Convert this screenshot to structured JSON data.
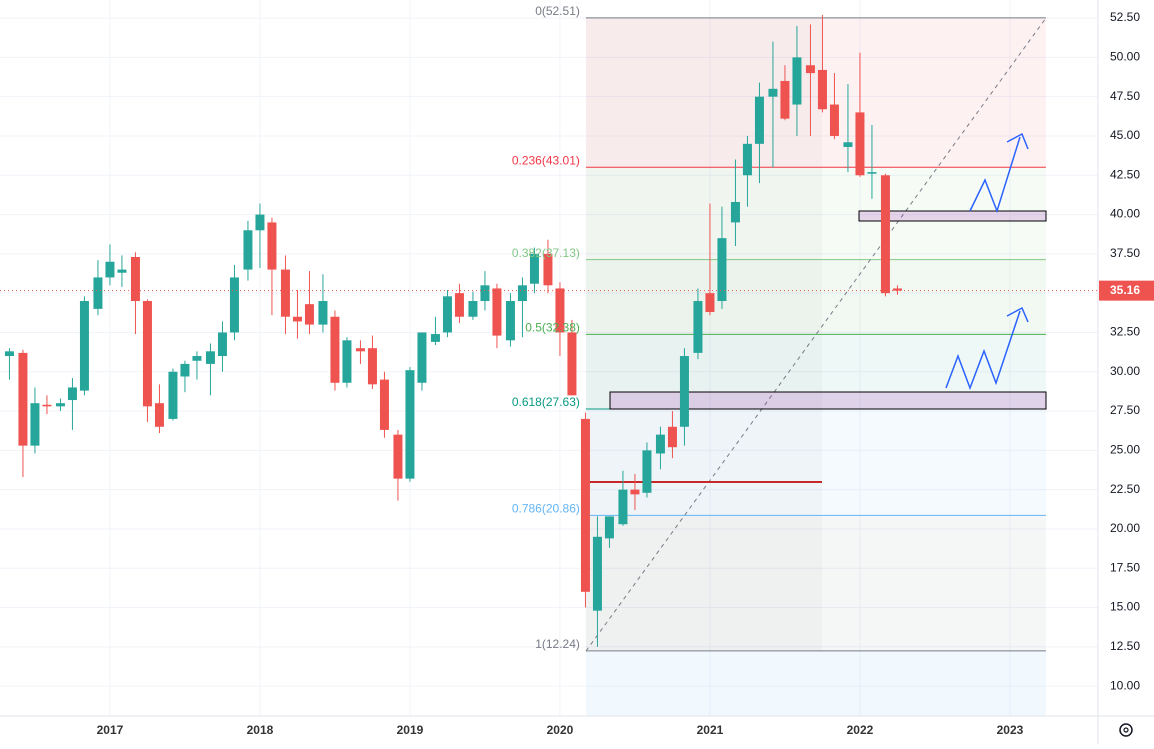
{
  "chart_data": {
    "type": "candlestick",
    "up_color": "#26a69a",
    "down_color": "#ef5350",
    "xlim": [
      2016.267,
      2023.587
    ],
    "xticks": [
      2017,
      2018,
      2019,
      2020,
      2021,
      2022,
      2023
    ],
    "ylim": [
      8.1,
      53.65
    ],
    "yticks": [
      {
        "value": 10,
        "label": "10.00"
      },
      {
        "value": 12.5,
        "label": "12.50"
      },
      {
        "value": 15,
        "label": "15.00"
      },
      {
        "value": 17.5,
        "label": "17.50"
      },
      {
        "value": 20,
        "label": "20.00"
      },
      {
        "value": 22.5,
        "label": "22.50"
      },
      {
        "value": 25,
        "label": "25.00"
      },
      {
        "value": 27.5,
        "label": "27.50"
      },
      {
        "value": 30,
        "label": "30.00"
      },
      {
        "value": 32.5,
        "label": "32.50"
      },
      {
        "value": 35,
        "label": "35.00"
      },
      {
        "value": 37.5,
        "label": "37.50"
      },
      {
        "value": 40,
        "label": "40.00"
      },
      {
        "value": 42.5,
        "label": "42.50"
      },
      {
        "value": 45,
        "label": "45.00"
      },
      {
        "value": 47.5,
        "label": "47.50"
      },
      {
        "value": 50,
        "label": "50.00"
      },
      {
        "value": 52.5,
        "label": "52.50"
      }
    ],
    "grid": true,
    "x": [
      2016.33,
      2016.42,
      2016.5,
      2016.58,
      2016.67,
      2016.75,
      2016.83,
      2016.92,
      2017.0,
      2017.08,
      2017.17,
      2017.25,
      2017.33,
      2017.42,
      2017.5,
      2017.58,
      2017.67,
      2017.75,
      2017.83,
      2017.92,
      2018.0,
      2018.08,
      2018.17,
      2018.25,
      2018.33,
      2018.42,
      2018.5,
      2018.58,
      2018.67,
      2018.75,
      2018.83,
      2018.92,
      2019.0,
      2019.08,
      2019.17,
      2019.25,
      2019.33,
      2019.42,
      2019.5,
      2019.58,
      2019.67,
      2019.75,
      2019.83,
      2019.92,
      2020.0,
      2020.08,
      2020.17,
      2020.25,
      2020.33,
      2020.42,
      2020.5,
      2020.58,
      2020.67,
      2020.75,
      2020.83,
      2020.92,
      2021.0,
      2021.08,
      2021.17,
      2021.25,
      2021.33,
      2021.42,
      2021.5,
      2021.58,
      2021.67,
      2021.75,
      2021.83,
      2021.92,
      2022.0,
      2022.08,
      2022.17,
      2022.25
    ],
    "open": [
      31.0,
      31.2,
      25.3,
      27.9,
      27.8,
      28.2,
      28.8,
      34.0,
      36.0,
      36.3,
      37.3,
      34.5,
      28.0,
      27.0,
      29.7,
      30.7,
      30.5,
      31.0,
      32.5,
      36.5,
      39.0,
      39.5,
      36.5,
      33.5,
      34.3,
      33.0,
      33.5,
      29.3,
      31.5,
      31.5,
      29.5,
      26.0,
      23.2,
      29.3,
      31.9,
      32.5,
      35.0,
      33.5,
      34.5,
      35.3,
      32.0,
      34.5,
      35.6,
      37.5,
      35.3,
      32.5,
      27.0,
      14.8,
      19.4,
      20.3,
      22.5,
      22.3,
      24.8,
      26.5,
      26.5,
      31.2,
      35.0,
      34.5,
      39.5,
      42.5,
      44.5,
      47.5,
      48.5,
      47.0,
      49.5,
      49.2,
      47.0,
      44.3,
      46.5,
      42.6,
      42.5,
      35.3
    ],
    "high": [
      31.5,
      31.4,
      29.0,
      28.5,
      28.3,
      29.6,
      34.8,
      37.1,
      38.1,
      37.4,
      37.6,
      34.6,
      29.2,
      30.2,
      30.7,
      31.3,
      31.8,
      33.2,
      36.8,
      39.6,
      40.7,
      39.8,
      37.4,
      35.2,
      36.4,
      36.2,
      33.9,
      32.2,
      32.0,
      32.3,
      30.0,
      26.3,
      30.3,
      32.5,
      33.5,
      35.2,
      35.6,
      35.1,
      36.4,
      35.6,
      35.0,
      36.0,
      37.9,
      38.4,
      35.7,
      33.3,
      27.4,
      20.8,
      20.8,
      23.7,
      23.5,
      25.5,
      26.5,
      27.5,
      31.5,
      35.3,
      40.7,
      40.5,
      43.5,
      45.0,
      48.4,
      51.0,
      49.5,
      52.0,
      52.1,
      52.7,
      49.0,
      48.3,
      50.3,
      45.7,
      42.6,
      35.5
    ],
    "low": [
      29.5,
      23.3,
      24.8,
      27.3,
      27.5,
      26.3,
      28.5,
      33.6,
      35.5,
      35.4,
      32.4,
      26.8,
      26.1,
      26.9,
      28.7,
      29.5,
      28.5,
      30.0,
      32.0,
      35.8,
      36.6,
      33.6,
      32.4,
      32.1,
      32.4,
      32.5,
      28.8,
      29.0,
      30.5,
      28.9,
      25.8,
      21.8,
      23.0,
      28.8,
      31.7,
      32.2,
      33.1,
      33.3,
      33.9,
      31.5,
      31.6,
      32.2,
      35.0,
      35.0,
      31.0,
      28.5,
      15.0,
      12.5,
      18.8,
      20.2,
      21.2,
      22.0,
      23.8,
      24.5,
      25.3,
      30.8,
      33.6,
      34.0,
      38.0,
      40.5,
      42.0,
      43.0,
      46.0,
      45.0,
      45.0,
      46.5,
      44.8,
      42.7,
      42.4,
      41.0,
      34.8,
      34.9
    ],
    "close": [
      31.3,
      25.3,
      28.0,
      27.8,
      28.0,
      29.0,
      34.5,
      36.0,
      37.0,
      36.5,
      34.5,
      27.8,
      26.5,
      30.0,
      30.5,
      31.0,
      31.3,
      32.5,
      36.0,
      39.0,
      40.0,
      36.5,
      33.5,
      33.2,
      33.0,
      34.5,
      29.3,
      32.0,
      31.3,
      29.2,
      26.3,
      23.2,
      30.1,
      32.5,
      32.4,
      34.8,
      33.5,
      34.5,
      35.5,
      32.3,
      34.5,
      35.5,
      37.5,
      35.5,
      32.5,
      28.5,
      16.0,
      19.5,
      20.8,
      22.5,
      22.2,
      25.0,
      26.0,
      25.2,
      31.0,
      34.5,
      33.8,
      38.5,
      40.8,
      44.5,
      47.5,
      48.0,
      46.1,
      50.0,
      49.0,
      46.7,
      45.0,
      44.6,
      42.5,
      42.7,
      35.0,
      35.16
    ],
    "last_price": 35.16,
    "last_price_label": "35.16",
    "fib": {
      "x": [
        2020.173,
        2023.24
      ],
      "levels": [
        {
          "ratio": 0,
          "value": 52.51,
          "label": "0(52.51)",
          "color": "#787b86"
        },
        {
          "ratio": 0.236,
          "value": 43.01,
          "label": "0.236(43.01)",
          "color": "#f23645"
        },
        {
          "ratio": 0.382,
          "value": 37.13,
          "label": "0.382(37.13)",
          "color": "#81c784"
        },
        {
          "ratio": 0.5,
          "value": 32.38,
          "label": "0.5(32.38)",
          "color": "#4caf50"
        },
        {
          "ratio": 0.618,
          "value": 27.63,
          "label": "0.618(27.63)",
          "color": "#089981"
        },
        {
          "ratio": 0.786,
          "value": 20.86,
          "label": "0.786(20.86)",
          "color": "#64b5f6"
        },
        {
          "ratio": 1,
          "value": 12.24,
          "label": "1(12.24)",
          "color": "#787b86"
        }
      ]
    }
  }
}
